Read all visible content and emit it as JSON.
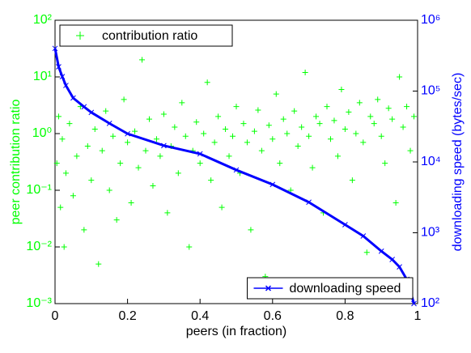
{
  "chart_data": {
    "type": "scatter",
    "xlabel": "peers (in fraction)",
    "ylabel": "peer contribution ratio",
    "y2label": "downloading speed (bytes/sec)",
    "xlim": [
      0,
      1
    ],
    "xticks": [
      0,
      0.2,
      0.4,
      0.6,
      0.8,
      1
    ],
    "ylim": [
      0.001,
      100
    ],
    "yscale": "log",
    "yticks": [
      {
        "value": 0.001,
        "label": "10⁻³"
      },
      {
        "value": 0.01,
        "label": "10⁻²"
      },
      {
        "value": 0.1,
        "label": "10⁻¹"
      },
      {
        "value": 1,
        "label": "10⁰"
      },
      {
        "value": 10,
        "label": "10¹"
      },
      {
        "value": 100,
        "label": "10²"
      }
    ],
    "y2lim": [
      100,
      1000000
    ],
    "y2scale": "log",
    "y2ticks": [
      {
        "value": 100,
        "label": "10²"
      },
      {
        "value": 1000,
        "label": "10³"
      },
      {
        "value": 10000,
        "label": "10⁴"
      },
      {
        "value": 100000,
        "label": "10⁵"
      },
      {
        "value": 1000000,
        "label": "10⁶"
      }
    ],
    "series": [
      {
        "name": "contribution ratio",
        "type": "scatter",
        "color": "#00ff00",
        "legend": "upper left",
        "x": [
          0.005,
          0.01,
          0.015,
          0.02,
          0.025,
          0.03,
          0.04,
          0.05,
          0.06,
          0.07,
          0.08,
          0.09,
          0.1,
          0.11,
          0.12,
          0.13,
          0.14,
          0.15,
          0.16,
          0.17,
          0.18,
          0.19,
          0.2,
          0.21,
          0.22,
          0.23,
          0.24,
          0.25,
          0.26,
          0.27,
          0.28,
          0.29,
          0.3,
          0.31,
          0.32,
          0.33,
          0.34,
          0.35,
          0.36,
          0.37,
          0.38,
          0.39,
          0.4,
          0.41,
          0.42,
          0.43,
          0.44,
          0.45,
          0.46,
          0.47,
          0.48,
          0.49,
          0.5,
          0.51,
          0.52,
          0.53,
          0.54,
          0.55,
          0.56,
          0.57,
          0.58,
          0.59,
          0.6,
          0.61,
          0.62,
          0.63,
          0.64,
          0.65,
          0.66,
          0.67,
          0.68,
          0.69,
          0.7,
          0.71,
          0.72,
          0.73,
          0.74,
          0.75,
          0.76,
          0.77,
          0.78,
          0.79,
          0.8,
          0.81,
          0.82,
          0.83,
          0.84,
          0.85,
          0.86,
          0.87,
          0.88,
          0.89,
          0.9,
          0.91,
          0.92,
          0.93,
          0.94,
          0.95,
          0.96,
          0.97,
          0.98,
          0.99
        ],
        "values": [
          0.3,
          2,
          0.05,
          0.8,
          0.01,
          0.2,
          1.5,
          0.08,
          0.4,
          3,
          0.02,
          0.6,
          0.15,
          1.2,
          0.005,
          0.5,
          2.5,
          0.1,
          0.9,
          0.03,
          0.3,
          4,
          0.7,
          0.06,
          1.1,
          0.25,
          20,
          0.5,
          1.8,
          0.12,
          0.8,
          0.4,
          2.2,
          0.04,
          0.6,
          1.3,
          0.2,
          3.5,
          0.9,
          0.01,
          0.5,
          1.6,
          0.3,
          1,
          8,
          0.15,
          0.7,
          2,
          0.05,
          1.2,
          0.4,
          0.9,
          3,
          0.2,
          1.5,
          0.7,
          0.02,
          1.1,
          2.6,
          0.5,
          0.003,
          1.4,
          0.8,
          5,
          0.3,
          1.8,
          1,
          0.1,
          2.5,
          0.6,
          1.3,
          12,
          0.9,
          0.25,
          2,
          1.5,
          0.04,
          3,
          0.8,
          1.7,
          0.4,
          6,
          1.2,
          2.4,
          0.15,
          1,
          3.5,
          0.7,
          0.008,
          2,
          1.5,
          4,
          0.9,
          0.3,
          2.8,
          1.8,
          0.06,
          10,
          1.3,
          3,
          0.5,
          2
        ]
      },
      {
        "name": "downloading speed",
        "type": "line",
        "axis": "y2",
        "color": "#0000ff",
        "legend": "lower right",
        "x": [
          0,
          0.01,
          0.02,
          0.03,
          0.05,
          0.08,
          0.1,
          0.15,
          0.2,
          0.3,
          0.4,
          0.5,
          0.6,
          0.7,
          0.8,
          0.85,
          0.9,
          0.93,
          0.95,
          0.97,
          0.98,
          0.99
        ],
        "values": [
          400000,
          220000,
          160000,
          120000,
          80000,
          60000,
          50000,
          35000,
          25000,
          17000,
          13000,
          7700,
          4800,
          2700,
          1300,
          900,
          550,
          420,
          330,
          220,
          150,
          100
        ]
      }
    ]
  }
}
